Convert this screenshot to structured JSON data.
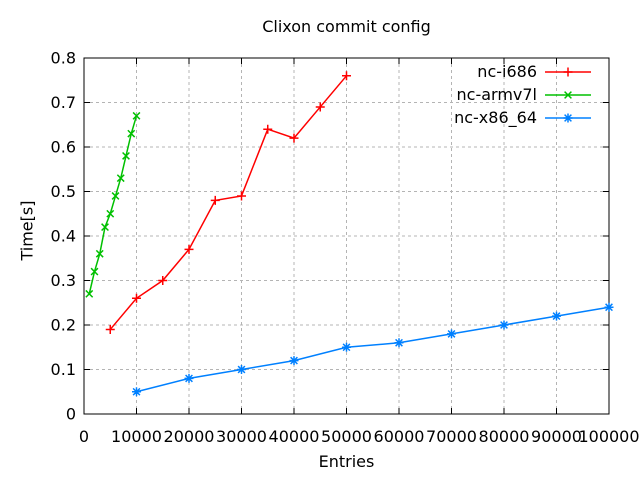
{
  "window": {
    "background": "#ffffff"
  },
  "colors": {
    "axis": "#000000",
    "text": "#000000",
    "grid": "#b4b4b4",
    "series_red": "#ff0000",
    "series_green": "#00c000",
    "series_blue": "#0080ff"
  },
  "chart_data": {
    "type": "line",
    "title": "Clixon commit config",
    "xlabel": "Entries",
    "ylabel": "Time[s]",
    "xlim": [
      0,
      100000
    ],
    "ylim": [
      0,
      0.8
    ],
    "xticks": [
      0,
      10000,
      20000,
      30000,
      40000,
      50000,
      60000,
      70000,
      80000,
      90000,
      100000
    ],
    "yticks": [
      "0",
      "0.1",
      "0.2",
      "0.3",
      "0.4",
      "0.5",
      "0.6",
      "0.7",
      "0.8"
    ],
    "grid": true,
    "legend_position": "top-right-inside",
    "series": [
      {
        "name": "nc-i686",
        "color": "#ff0000",
        "marker": "plus",
        "points": [
          [
            5000,
            0.19
          ],
          [
            10000,
            0.26
          ],
          [
            15000,
            0.3
          ],
          [
            20000,
            0.37
          ],
          [
            25000,
            0.48
          ],
          [
            30000,
            0.49
          ],
          [
            35000,
            0.64
          ],
          [
            40000,
            0.62
          ],
          [
            45000,
            0.69
          ],
          [
            50000,
            0.76
          ]
        ]
      },
      {
        "name": "nc-armv7l",
        "color": "#00c000",
        "marker": "cross",
        "points": [
          [
            1000,
            0.27
          ],
          [
            2000,
            0.32
          ],
          [
            3000,
            0.36
          ],
          [
            4000,
            0.42
          ],
          [
            5000,
            0.45
          ],
          [
            6000,
            0.49
          ],
          [
            7000,
            0.53
          ],
          [
            8000,
            0.58
          ],
          [
            9000,
            0.63
          ],
          [
            10000,
            0.67
          ]
        ]
      },
      {
        "name": "nc-x86_64",
        "color": "#0080ff",
        "marker": "asterisk",
        "points": [
          [
            10000,
            0.05
          ],
          [
            20000,
            0.08
          ],
          [
            30000,
            0.1
          ],
          [
            40000,
            0.12
          ],
          [
            50000,
            0.15
          ],
          [
            60000,
            0.16
          ],
          [
            70000,
            0.18
          ],
          [
            80000,
            0.2
          ],
          [
            90000,
            0.22
          ],
          [
            100000,
            0.24
          ]
        ]
      }
    ]
  }
}
